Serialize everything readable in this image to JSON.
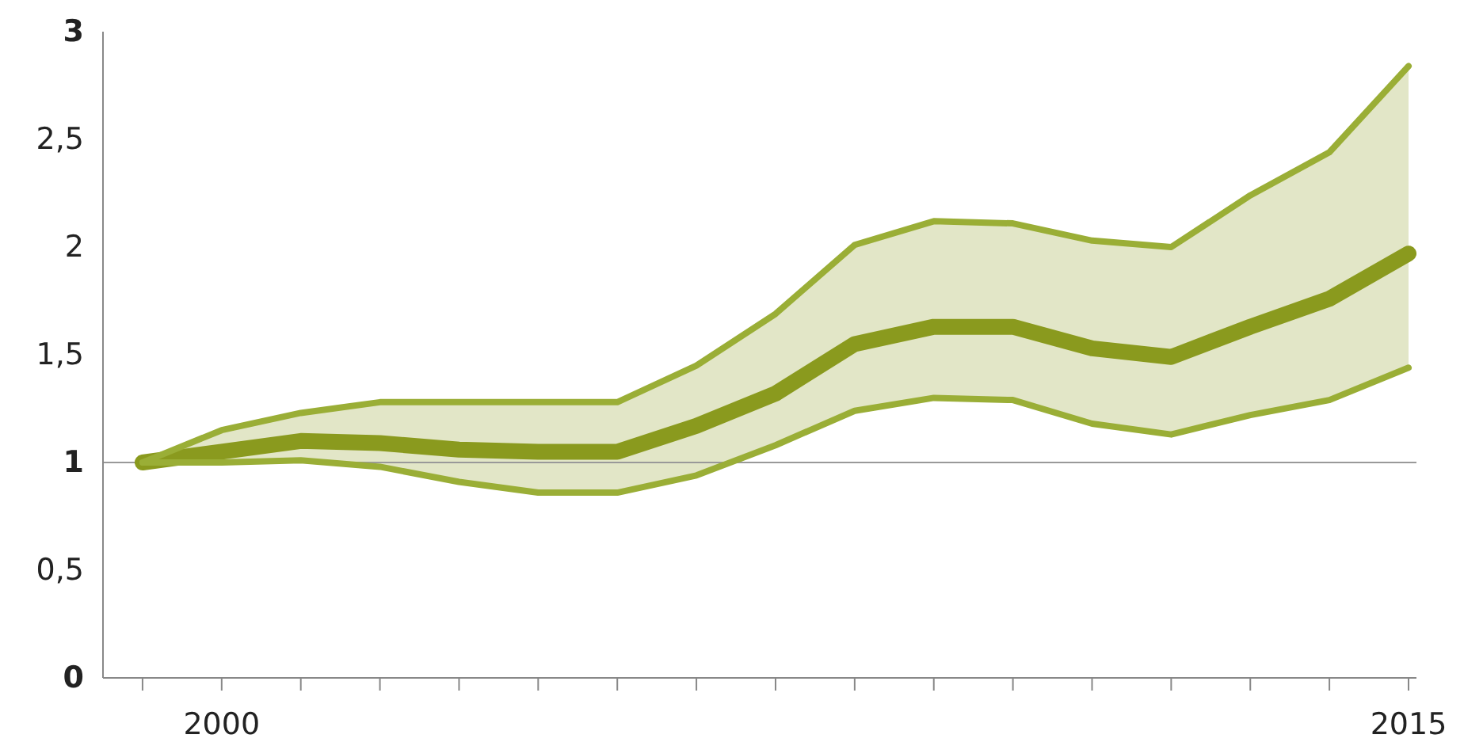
{
  "chart_data": {
    "type": "line",
    "x": [
      1999,
      2000,
      2001,
      2002,
      2003,
      2004,
      2005,
      2006,
      2007,
      2008,
      2009,
      2010,
      2011,
      2012,
      2013,
      2014,
      2015
    ],
    "series": [
      {
        "color": "#8a9a1e",
        "values": [
          1.0,
          1.05,
          1.1,
          1.09,
          1.06,
          1.05,
          1.05,
          1.17,
          1.32,
          1.55,
          1.63,
          1.63,
          1.53,
          1.49,
          1.63,
          1.76,
          1.97
        ],
        "lower": [
          1.0,
          1.0,
          1.01,
          0.98,
          0.91,
          0.86,
          0.86,
          0.94,
          1.08,
          1.24,
          1.3,
          1.29,
          1.18,
          1.13,
          1.22,
          1.29,
          1.44
        ],
        "upper": [
          1.0,
          1.15,
          1.23,
          1.28,
          1.28,
          1.28,
          1.28,
          1.45,
          1.69,
          2.01,
          2.12,
          2.11,
          2.03,
          2.0,
          2.24,
          2.44,
          2.84
        ]
      },
      {
        "color": "#9aae36",
        "values": [
          1.0,
          1.15,
          1.23,
          1.28,
          1.28,
          1.28,
          1.28,
          1.45,
          1.69,
          2.01,
          2.12,
          2.11,
          2.03,
          2.0,
          2.24,
          2.44,
          2.84
        ]
      },
      {
        "color": "#9aae36",
        "values": [
          1.0,
          1.0,
          1.01,
          0.98,
          0.91,
          0.86,
          0.86,
          0.94,
          1.08,
          1.24,
          1.3,
          1.29,
          1.18,
          1.13,
          1.22,
          1.29,
          1.44
        ]
      }
    ],
    "xlim": [
      1998.5,
      2015.1
    ],
    "xticks": [
      {
        "value": 1999,
        "label": null
      },
      {
        "value": 2000,
        "label": "2000"
      },
      {
        "value": 2001,
        "label": null
      },
      {
        "value": 2002,
        "label": null
      },
      {
        "value": 2003,
        "label": null
      },
      {
        "value": 2004,
        "label": null
      },
      {
        "value": 2005,
        "label": null
      },
      {
        "value": 2006,
        "label": null
      },
      {
        "value": 2007,
        "label": null
      },
      {
        "value": 2008,
        "label": null
      },
      {
        "value": 2009,
        "label": null
      },
      {
        "value": 2010,
        "label": null
      },
      {
        "value": 2011,
        "label": null
      },
      {
        "value": 2012,
        "label": null
      },
      {
        "value": 2013,
        "label": null
      },
      {
        "value": 2014,
        "label": null
      },
      {
        "value": 2015,
        "label": "2015"
      }
    ],
    "ylim": [
      0,
      3
    ],
    "yticks": [
      0,
      {
        "value": 0.5,
        "label": "0,5"
      },
      1,
      {
        "value": 1.5,
        "label": "1,5"
      },
      2,
      {
        "value": 2.5,
        "label": "2,5"
      },
      3
    ],
    "ref_lines": [
      {
        "axis": "y",
        "value": 1,
        "color": "#999999"
      }
    ],
    "grid": false,
    "legend": false,
    "marker": "none",
    "line_style": "solid"
  }
}
